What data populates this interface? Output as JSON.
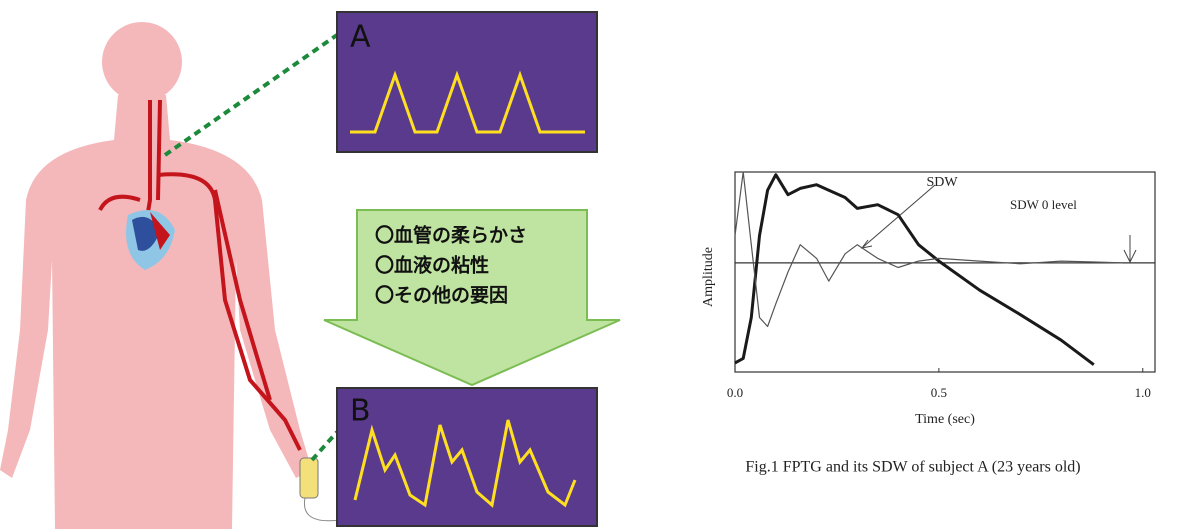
{
  "diagram": {
    "panel_a_label": "A",
    "panel_b_label": "B",
    "factors": [
      "〇血管の柔らかさ",
      "〇血液の粘性",
      "〇その他の要因"
    ]
  },
  "chart_data": {
    "type": "line",
    "ylabel": "Amplitude",
    "xlabel": "Time (sec)",
    "annotations": [
      "SDW",
      "SDW 0 level"
    ],
    "caption": "Fig.1 FPTG and its SDW of subject A (23 years old)",
    "x": [
      0,
      0.02,
      0.04,
      0.06,
      0.08,
      0.1,
      0.13,
      0.16,
      0.2,
      0.23,
      0.27,
      0.3,
      0.35,
      0.4,
      0.45,
      0.5,
      0.6,
      0.7,
      0.8,
      0.88,
      0.95
    ],
    "series": [
      {
        "color": "#1a1a1a",
        "width": 3,
        "values": [
          -1.1,
          -1.05,
          -0.6,
          0.3,
          0.8,
          0.97,
          0.75,
          0.82,
          0.86,
          0.8,
          0.72,
          0.6,
          0.64,
          0.53,
          0.2,
          0.02,
          -0.3,
          -0.57,
          -0.85,
          -1.12,
          null
        ]
      },
      {
        "color": "#555555",
        "width": 1.2,
        "values": [
          0.3,
          1.0,
          0.2,
          -0.6,
          -0.7,
          -0.45,
          -0.1,
          0.2,
          0.05,
          -0.2,
          0.1,
          0.2,
          0.05,
          -0.05,
          0.02,
          0.05,
          0.02,
          -0.01,
          0.02,
          0.01,
          0
        ]
      }
    ],
    "zero_level": 0,
    "xlim": [
      0,
      1.03
    ],
    "ylim": [
      -1.2,
      1
    ],
    "xticks": [
      {
        "value": 0,
        "label": "0.0"
      },
      0.5,
      {
        "value": 1,
        "label": "1.0"
      }
    ]
  }
}
